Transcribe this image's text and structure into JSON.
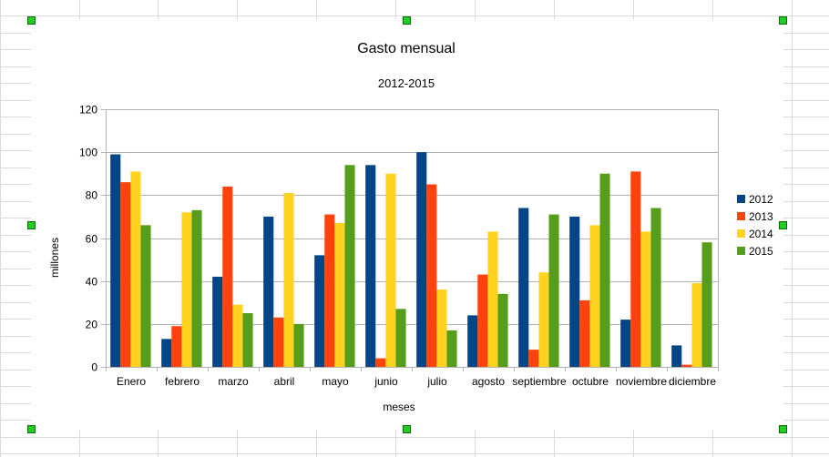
{
  "colors": {
    "series": [
      "#004586",
      "#ff420e",
      "#ffd320",
      "#579d1c"
    ],
    "grid": "#b3b3b3",
    "sheet_grid": "#dadada",
    "handle": "#22cc22"
  },
  "chart_data": {
    "type": "bar",
    "title": "Gasto mensual",
    "subtitle": "2012-2015",
    "xlabel": "meses",
    "ylabel": "millones",
    "ylim": [
      0,
      120
    ],
    "yticks": [
      0,
      20,
      40,
      60,
      80,
      100,
      120
    ],
    "grid": true,
    "legend": "right",
    "categories": [
      "Enero",
      "febrero",
      "marzo",
      "abril",
      "mayo",
      "junio",
      "julio",
      "agosto",
      "septiembre",
      "octubre",
      "noviembre",
      "diciembre"
    ],
    "series": [
      {
        "name": "2012",
        "values": [
          99,
          13,
          42,
          70,
          52,
          94,
          100,
          24,
          74,
          70,
          22,
          10
        ]
      },
      {
        "name": "2013",
        "values": [
          86,
          19,
          84,
          23,
          71,
          4,
          85,
          43,
          8,
          31,
          91,
          1
        ]
      },
      {
        "name": "2014",
        "values": [
          91,
          72,
          29,
          81,
          67,
          90,
          36,
          63,
          44,
          66,
          63,
          39
        ]
      },
      {
        "name": "2015",
        "values": [
          66,
          73,
          25,
          20,
          94,
          27,
          17,
          34,
          71,
          90,
          74,
          58
        ]
      }
    ]
  }
}
